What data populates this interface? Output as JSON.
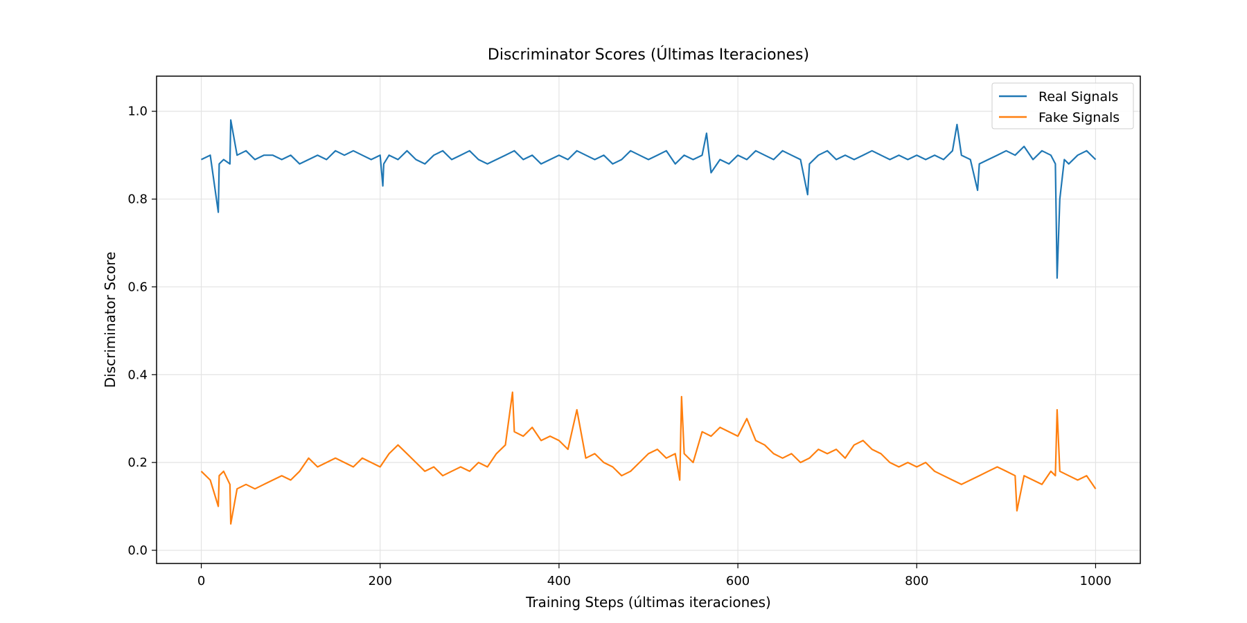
{
  "chart_data": {
    "type": "line",
    "title": "Discriminator Scores (Últimas Iteraciones)",
    "xlabel": "Training Steps (últimas iteraciones)",
    "ylabel": "Discriminator Score",
    "xlim": [
      -50,
      1050
    ],
    "ylim": [
      -0.03,
      1.08
    ],
    "xticks": [
      0,
      200,
      400,
      600,
      800,
      1000
    ],
    "yticks": [
      0.0,
      0.2,
      0.4,
      0.6,
      0.8,
      1.0
    ],
    "xtick_labels": [
      "0",
      "200",
      "400",
      "600",
      "800",
      "1000"
    ],
    "ytick_labels": [
      "0.0",
      "0.2",
      "0.4",
      "0.6",
      "0.8",
      "1.0"
    ],
    "grid": true,
    "legend_position": "top-right",
    "colors": {
      "real": "#1f77b4",
      "fake": "#ff7f0e"
    },
    "series": [
      {
        "name": "Real Signals",
        "color": "#1f77b4",
        "x": [
          0,
          10,
          19,
          20,
          25,
          32,
          33,
          40,
          50,
          60,
          70,
          80,
          90,
          100,
          110,
          120,
          130,
          140,
          150,
          160,
          170,
          180,
          190,
          200,
          203,
          204,
          210,
          220,
          230,
          240,
          250,
          260,
          270,
          280,
          290,
          300,
          310,
          320,
          330,
          340,
          350,
          360,
          370,
          380,
          390,
          400,
          410,
          420,
          430,
          440,
          450,
          460,
          470,
          480,
          490,
          500,
          510,
          520,
          530,
          540,
          550,
          560,
          565,
          570,
          580,
          590,
          600,
          610,
          620,
          630,
          640,
          650,
          660,
          670,
          678,
          680,
          690,
          700,
          710,
          720,
          730,
          740,
          750,
          760,
          770,
          780,
          790,
          800,
          810,
          820,
          830,
          840,
          845,
          850,
          860,
          868,
          870,
          880,
          890,
          900,
          910,
          920,
          930,
          940,
          950,
          955,
          957,
          960,
          965,
          970,
          980,
          990,
          1000
        ],
        "values": [
          0.89,
          0.9,
          0.77,
          0.88,
          0.89,
          0.88,
          0.98,
          0.9,
          0.91,
          0.89,
          0.9,
          0.9,
          0.89,
          0.9,
          0.88,
          0.89,
          0.9,
          0.89,
          0.91,
          0.9,
          0.91,
          0.9,
          0.89,
          0.9,
          0.83,
          0.88,
          0.9,
          0.89,
          0.91,
          0.89,
          0.88,
          0.9,
          0.91,
          0.89,
          0.9,
          0.91,
          0.89,
          0.88,
          0.89,
          0.9,
          0.91,
          0.89,
          0.9,
          0.88,
          0.89,
          0.9,
          0.89,
          0.91,
          0.9,
          0.89,
          0.9,
          0.88,
          0.89,
          0.91,
          0.9,
          0.89,
          0.9,
          0.91,
          0.88,
          0.9,
          0.89,
          0.9,
          0.95,
          0.86,
          0.89,
          0.88,
          0.9,
          0.89,
          0.91,
          0.9,
          0.89,
          0.91,
          0.9,
          0.89,
          0.81,
          0.88,
          0.9,
          0.91,
          0.89,
          0.9,
          0.89,
          0.9,
          0.91,
          0.9,
          0.89,
          0.9,
          0.89,
          0.9,
          0.89,
          0.9,
          0.89,
          0.91,
          0.97,
          0.9,
          0.89,
          0.82,
          0.88,
          0.89,
          0.9,
          0.91,
          0.9,
          0.92,
          0.89,
          0.91,
          0.9,
          0.88,
          0.62,
          0.8,
          0.89,
          0.88,
          0.9,
          0.91,
          0.89
        ]
      },
      {
        "name": "Fake Signals",
        "color": "#ff7f0e",
        "x": [
          0,
          10,
          19,
          20,
          25,
          32,
          33,
          40,
          50,
          60,
          70,
          80,
          90,
          100,
          110,
          120,
          130,
          140,
          150,
          160,
          170,
          180,
          190,
          200,
          210,
          220,
          230,
          240,
          250,
          260,
          270,
          280,
          290,
          300,
          310,
          320,
          330,
          340,
          348,
          350,
          360,
          370,
          380,
          390,
          400,
          410,
          420,
          430,
          440,
          450,
          460,
          470,
          480,
          490,
          500,
          510,
          520,
          530,
          535,
          537,
          540,
          550,
          560,
          570,
          580,
          590,
          600,
          610,
          620,
          630,
          640,
          650,
          660,
          670,
          680,
          690,
          700,
          710,
          720,
          730,
          740,
          750,
          760,
          770,
          780,
          790,
          800,
          810,
          820,
          830,
          840,
          850,
          860,
          870,
          880,
          890,
          900,
          910,
          912,
          920,
          930,
          940,
          950,
          955,
          957,
          960,
          970,
          980,
          990,
          1000
        ],
        "values": [
          0.18,
          0.16,
          0.1,
          0.17,
          0.18,
          0.15,
          0.06,
          0.14,
          0.15,
          0.14,
          0.15,
          0.16,
          0.17,
          0.16,
          0.18,
          0.21,
          0.19,
          0.2,
          0.21,
          0.2,
          0.19,
          0.21,
          0.2,
          0.19,
          0.22,
          0.24,
          0.22,
          0.2,
          0.18,
          0.19,
          0.17,
          0.18,
          0.19,
          0.18,
          0.2,
          0.19,
          0.22,
          0.24,
          0.36,
          0.27,
          0.26,
          0.28,
          0.25,
          0.26,
          0.25,
          0.23,
          0.32,
          0.21,
          0.22,
          0.2,
          0.19,
          0.17,
          0.18,
          0.2,
          0.22,
          0.23,
          0.21,
          0.22,
          0.16,
          0.35,
          0.22,
          0.2,
          0.27,
          0.26,
          0.28,
          0.27,
          0.26,
          0.3,
          0.25,
          0.24,
          0.22,
          0.21,
          0.22,
          0.2,
          0.21,
          0.23,
          0.22,
          0.23,
          0.21,
          0.24,
          0.25,
          0.23,
          0.22,
          0.2,
          0.19,
          0.2,
          0.19,
          0.2,
          0.18,
          0.17,
          0.16,
          0.15,
          0.16,
          0.17,
          0.18,
          0.19,
          0.18,
          0.17,
          0.09,
          0.17,
          0.16,
          0.15,
          0.18,
          0.17,
          0.32,
          0.18,
          0.17,
          0.16,
          0.17,
          0.14
        ]
      }
    ]
  }
}
